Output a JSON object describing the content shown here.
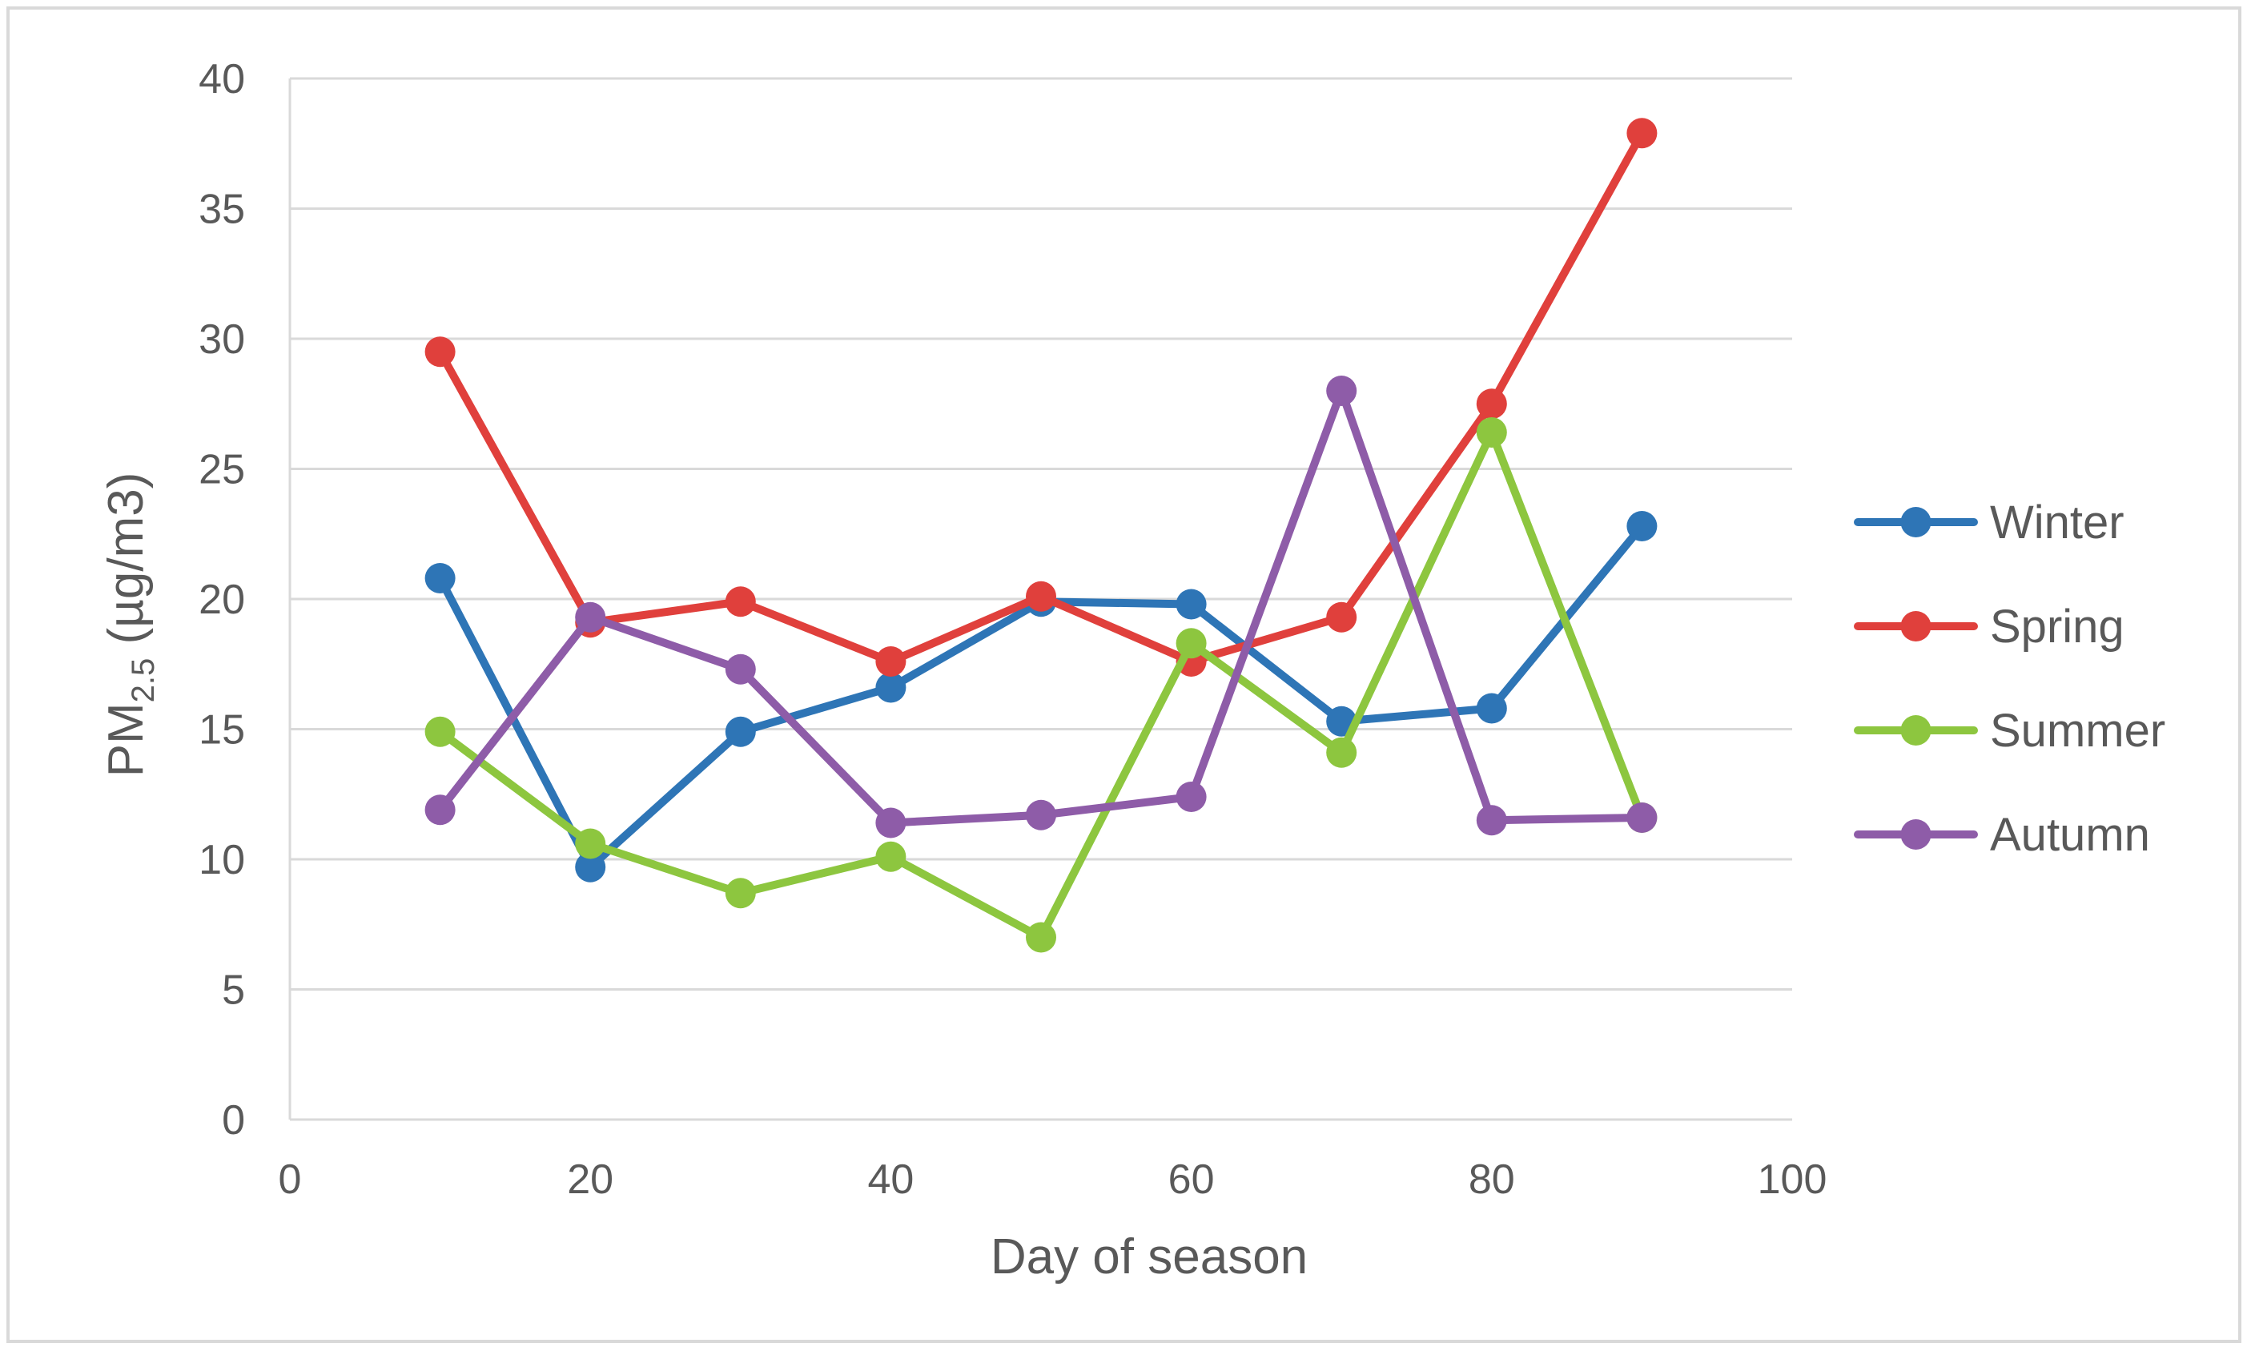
{
  "chart_data": {
    "type": "line",
    "xlabel": "Day of season",
    "ylabel": {
      "main": "PM",
      "subscript": "2.5",
      "unit": " (µg/m3)"
    },
    "xlim": [
      0,
      100
    ],
    "ylim": [
      0,
      40
    ],
    "x_ticks": [
      0,
      20,
      40,
      60,
      80,
      100
    ],
    "y_ticks": [
      0,
      5,
      10,
      15,
      20,
      25,
      30,
      35,
      40
    ],
    "grid": "horizontal",
    "legend_position": "right",
    "x": [
      10,
      20,
      30,
      40,
      50,
      60,
      70,
      80,
      90
    ],
    "series": [
      {
        "name": "Winter",
        "color": "#2e75b6",
        "values": [
          20.8,
          9.7,
          14.9,
          16.6,
          19.9,
          19.8,
          15.3,
          15.8,
          22.8
        ]
      },
      {
        "name": "Spring",
        "color": "#e0403c",
        "values": [
          29.5,
          19.1,
          19.9,
          17.6,
          20.1,
          17.6,
          19.3,
          27.5,
          37.9
        ]
      },
      {
        "name": "Summer",
        "color": "#8dc63f",
        "values": [
          14.9,
          10.6,
          8.7,
          10.1,
          7.0,
          18.3,
          14.1,
          26.4,
          11.6
        ]
      },
      {
        "name": "Autumn",
        "color": "#8e5ca8",
        "values": [
          11.9,
          19.3,
          17.3,
          11.4,
          11.7,
          12.4,
          28.0,
          11.5,
          11.6
        ]
      }
    ]
  },
  "colors": {
    "gridline": "#d9d9d9",
    "axis": "#d9d9d9",
    "text": "#595959",
    "frame": "#d9d9d9"
  }
}
